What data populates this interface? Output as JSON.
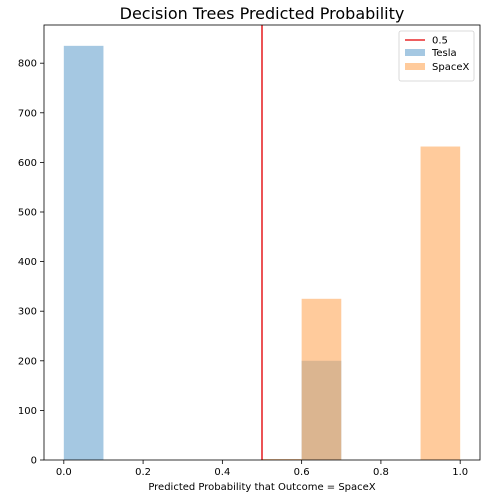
{
  "chart_data": {
    "type": "bar",
    "title": "Decision Trees Predicted Probability",
    "xlabel": "Predicted Probability that Outcome = SpaceX",
    "ylabel": "",
    "xlim": [
      -0.05,
      1.05
    ],
    "ylim": [
      0,
      877
    ],
    "xticks": [
      0.0,
      0.2,
      0.4,
      0.6,
      0.8,
      1.0
    ],
    "xtick_labels": [
      "0.0",
      "0.2",
      "0.4",
      "0.6",
      "0.8",
      "1.0"
    ],
    "yticks": [
      0,
      100,
      200,
      300,
      400,
      500,
      600,
      700,
      800
    ],
    "ytick_labels": [
      "0",
      "100",
      "200",
      "300",
      "400",
      "500",
      "600",
      "700",
      "800"
    ],
    "grid": false,
    "legend_position": "top-right",
    "bin_width": 0.1,
    "series": [
      {
        "name": "Tesla",
        "color": "#7fb0d6",
        "opacity": 0.7,
        "bins": [
          {
            "x0": 0.0,
            "x1": 0.1,
            "count": 835
          },
          {
            "x0": 0.6,
            "x1": 0.7,
            "count": 200
          }
        ]
      },
      {
        "name": "SpaceX",
        "color": "#ffa95a",
        "opacity": 0.6,
        "bins": [
          {
            "x0": 0.5,
            "x1": 0.6,
            "count": 2
          },
          {
            "x0": 0.6,
            "x1": 0.7,
            "count": 325
          },
          {
            "x0": 0.9,
            "x1": 1.0,
            "count": 632
          }
        ]
      }
    ],
    "reference_line": {
      "name": "0.5",
      "x": 0.5,
      "color": "#e8282b"
    }
  }
}
